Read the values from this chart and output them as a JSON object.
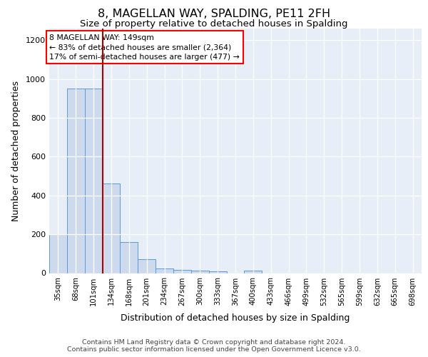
{
  "title": "8, MAGELLAN WAY, SPALDING, PE11 2FH",
  "subtitle": "Size of property relative to detached houses in Spalding",
  "xlabel": "Distribution of detached houses by size in Spalding",
  "ylabel": "Number of detached properties",
  "categories": [
    "35sqm",
    "68sqm",
    "101sqm",
    "134sqm",
    "168sqm",
    "201sqm",
    "234sqm",
    "267sqm",
    "300sqm",
    "333sqm",
    "367sqm",
    "400sqm",
    "433sqm",
    "466sqm",
    "499sqm",
    "532sqm",
    "565sqm",
    "599sqm",
    "632sqm",
    "665sqm",
    "698sqm"
  ],
  "values": [
    200,
    950,
    950,
    460,
    160,
    70,
    25,
    18,
    12,
    8,
    0,
    12,
    0,
    0,
    0,
    0,
    0,
    0,
    0,
    0,
    0
  ],
  "bar_color": "#cddaed",
  "bar_edge_color": "#5b9bd5",
  "red_line_x": 2.5,
  "annotation_text": "8 MAGELLAN WAY: 149sqm\n← 83% of detached houses are smaller (2,364)\n17% of semi-detached houses are larger (477) →",
  "footer": "Contains HM Land Registry data © Crown copyright and database right 2024.\nContains public sector information licensed under the Open Government Licence v3.0.",
  "ylim": [
    0,
    1260
  ],
  "yticks": [
    0,
    200,
    400,
    600,
    800,
    1000,
    1200
  ],
  "background_color": "#e8eef8"
}
